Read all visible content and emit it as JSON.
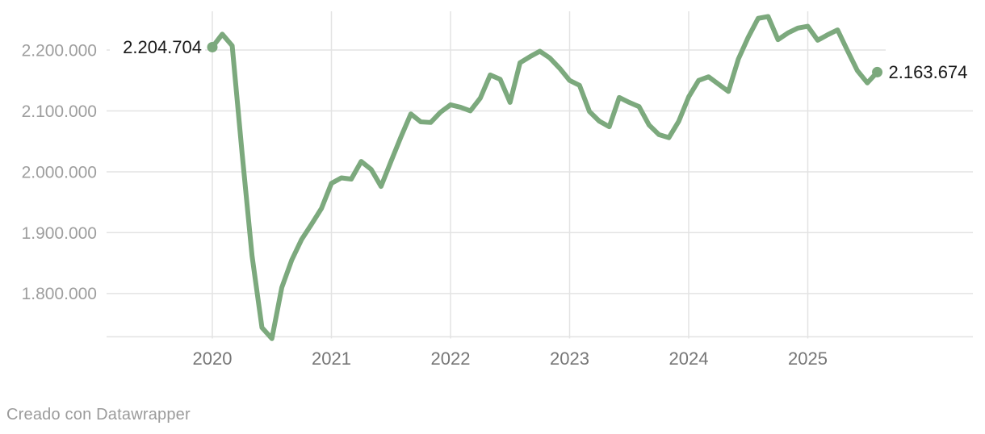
{
  "footer": {
    "credit": "Creado con Datawrapper"
  },
  "annotations": {
    "first_point_label": "2.204.704",
    "last_point_label": "2.163.674"
  },
  "colors": {
    "line": "#7CA97D",
    "grid": "#e3e3e3",
    "y_axis_text": "#9e9e9e",
    "x_axis_text": "#767676",
    "label_text": "#191919",
    "background": "#ffffff"
  },
  "chart_data": {
    "type": "line",
    "title": "",
    "xlabel": "",
    "ylabel": "",
    "grid": true,
    "legend": false,
    "x_frequency": "monthly",
    "xlim": [
      "2020-01",
      "2025-08"
    ],
    "ylim": [
      1722000,
      2262000
    ],
    "x_tick_labels": [
      "2020",
      "2021",
      "2022",
      "2023",
      "2024",
      "2025"
    ],
    "y_tick_labels": [
      "2.200.000",
      "2.100.000",
      "2.000.000",
      "1.900.000",
      "1.800.000"
    ],
    "y_tick_values": [
      2200000,
      2100000,
      2000000,
      1900000,
      1800000
    ],
    "point_labels": [
      {
        "position": "first",
        "value": 2204704,
        "text": "2.204.704"
      },
      {
        "position": "last",
        "value": 2163674,
        "text": "2.163.674"
      }
    ],
    "series": [
      {
        "name": "value",
        "values": [
          2204704,
          2226000,
          2207000,
          2030000,
          1862000,
          1744000,
          1726000,
          1810000,
          1855000,
          1889000,
          1914000,
          1940000,
          1981000,
          1990000,
          1988000,
          2017000,
          2004000,
          1976000,
          2017000,
          2057000,
          2095000,
          2082000,
          2081000,
          2098000,
          2110000,
          2106000,
          2100000,
          2121000,
          2159000,
          2152000,
          2114000,
          2179000,
          2189000,
          2198000,
          2187000,
          2170000,
          2150000,
          2142000,
          2099000,
          2083000,
          2074000,
          2122000,
          2114000,
          2107000,
          2077000,
          2061000,
          2056000,
          2083000,
          2123000,
          2150000,
          2156000,
          2144000,
          2132000,
          2185000,
          2221000,
          2252000,
          2255000,
          2217000,
          2228000,
          2236000,
          2239000,
          2216000,
          2225000,
          2233000,
          2199000,
          2166000,
          2146000,
          2163674
        ]
      }
    ]
  }
}
